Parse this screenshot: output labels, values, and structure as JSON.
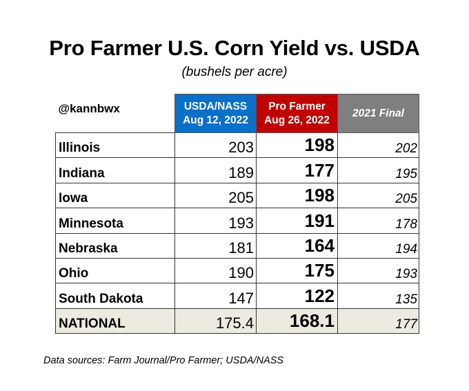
{
  "title": "Pro Farmer U.S. Corn Yield vs. USDA",
  "subtitle": "(bushels per acre)",
  "handle": "@kannbwx",
  "colors": {
    "usda_header": "#0b6fc8",
    "pro_farmer_header": "#c00000",
    "final_header": "#7f7f7f",
    "national_row": "#edeae0"
  },
  "chart_data": {
    "type": "table",
    "columns": [
      {
        "line1": "USDA/NASS",
        "line2": "Aug 12, 2022"
      },
      {
        "line1": "Pro Farmer",
        "line2": "Aug 26, 2022"
      },
      {
        "line1": "2021 Final",
        "line2": ""
      }
    ],
    "rows": [
      {
        "state": "Illinois",
        "usda": "203",
        "pro": "198",
        "final": "202"
      },
      {
        "state": "Indiana",
        "usda": "189",
        "pro": "177",
        "final": "195"
      },
      {
        "state": "Iowa",
        "usda": "205",
        "pro": "198",
        "final": "205"
      },
      {
        "state": "Minnesota",
        "usda": "193",
        "pro": "191",
        "final": "178"
      },
      {
        "state": "Nebraska",
        "usda": "181",
        "pro": "164",
        "final": "194"
      },
      {
        "state": "Ohio",
        "usda": "190",
        "pro": "175",
        "final": "193"
      },
      {
        "state": "South Dakota",
        "usda": "147",
        "pro": "122",
        "final": "135"
      },
      {
        "state": "NATIONAL",
        "usda": "175.4",
        "pro": "168.1",
        "final": "177"
      }
    ]
  },
  "source": "Data sources: Farm Journal/Pro Farmer; USDA/NASS"
}
